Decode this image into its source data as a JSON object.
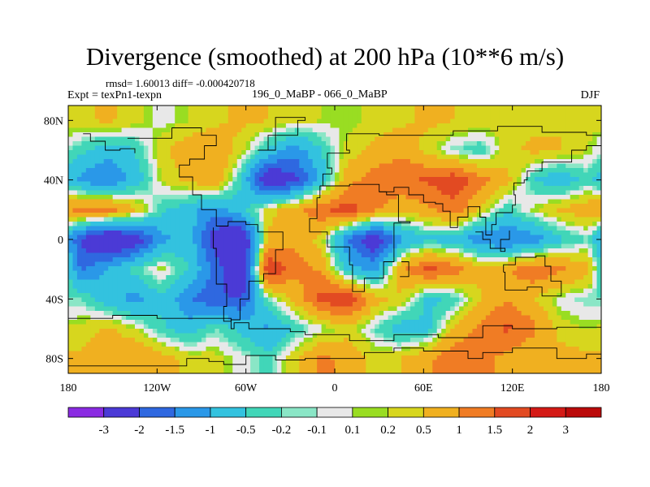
{
  "header": {
    "title": "Divergence (smoothed) at 200 hPa (10**6 m/s)",
    "stats": "rmsd= 1.60013 diff= -0.000420718",
    "experiment": "Expt = texPn1-texpn",
    "cases": "196_0_MaBP - 066_0_MaBP",
    "season": "DJF"
  },
  "chart_data": {
    "type": "heatmap",
    "title": "Divergence (smoothed) at 200 hPa (10**6 m/s)",
    "xlabel": "",
    "ylabel": "",
    "xlim": [
      -180,
      180
    ],
    "ylim": [
      -90,
      90
    ],
    "x_ticks": [
      {
        "value": -180,
        "label": "180"
      },
      {
        "value": -120,
        "label": "120W"
      },
      {
        "value": -60,
        "label": "60W"
      },
      {
        "value": 0,
        "label": "0"
      },
      {
        "value": 60,
        "label": "60E"
      },
      {
        "value": 120,
        "label": "120E"
      },
      {
        "value": 180,
        "label": "180"
      }
    ],
    "y_ticks": [
      {
        "value": 80,
        "label": "80N"
      },
      {
        "value": 40,
        "label": "40N"
      },
      {
        "value": 0,
        "label": "0"
      },
      {
        "value": -40,
        "label": "40S"
      },
      {
        "value": -80,
        "label": "80S"
      }
    ],
    "colorbar": {
      "boundaries": [
        "-3",
        "-2",
        "-1.5",
        "-1",
        "-0.5",
        "-0.2",
        "-0.1",
        "0.1",
        "0.2",
        "0.5",
        "1",
        "1.5",
        "2",
        "3"
      ],
      "colors": [
        "#8a2be2",
        "#4b3ad6",
        "#2f68e0",
        "#2a98e8",
        "#33c2df",
        "#41d6b8",
        "#8ae6c6",
        "#e8e8e8",
        "#99dd22",
        "#d7d61e",
        "#f0b020",
        "#f07c24",
        "#e24a22",
        "#d41a16",
        "#bb0a0a"
      ]
    },
    "bands": [
      {
        "lat": 80,
        "values": [
          0.4,
          0.6,
          0.3,
          0.0,
          0.2,
          0.4,
          0.6,
          0.5,
          0.3,
          0.2,
          0.1,
          0.3,
          0.4,
          0.6,
          0.5,
          0.4,
          0.3,
          0.4,
          0.5,
          0.3
        ]
      },
      {
        "lat": 60,
        "values": [
          -0.4,
          -0.8,
          -0.5,
          0.4,
          0.8,
          0.9,
          0.3,
          -0.6,
          -1.3,
          -0.5,
          0.3,
          0.6,
          0.9,
          0.3,
          -0.2,
          -0.4,
          0.4,
          0.6,
          0.5,
          0.2
        ]
      },
      {
        "lat": 40,
        "values": [
          -1.2,
          -1.5,
          -0.8,
          0.2,
          0.6,
          1.0,
          -0.5,
          -2.8,
          -2.2,
          -0.8,
          0.8,
          1.3,
          1.4,
          1.6,
          1.9,
          1.2,
          0.6,
          -0.5,
          -0.9,
          -0.3
        ]
      },
      {
        "lat": 20,
        "values": [
          1.2,
          1.3,
          0.6,
          -0.4,
          -0.8,
          -1.3,
          -0.7,
          0.3,
          0.8,
          1.4,
          1.8,
          1.1,
          0.6,
          0.9,
          1.3,
          0.4,
          -0.4,
          0.2,
          0.6,
          0.8
        ]
      },
      {
        "lat": 0,
        "values": [
          -2.1,
          -3.2,
          -2.5,
          -1.2,
          -0.6,
          -2.4,
          -3.0,
          0.6,
          0.9,
          0.3,
          -1.5,
          -2.6,
          -1.1,
          -0.6,
          -0.8,
          -1.4,
          -1.6,
          -1.3,
          -0.6,
          -0.2
        ]
      },
      {
        "lat": -20,
        "values": [
          -1.6,
          -0.9,
          -0.3,
          0.2,
          -0.5,
          -1.6,
          -3.1,
          2.1,
          1.2,
          0.9,
          -0.8,
          -1.2,
          0.9,
          1.7,
          1.3,
          0.6,
          0.9,
          1.4,
          1.1,
          0.7
        ]
      },
      {
        "lat": -40,
        "values": [
          -0.2,
          -0.8,
          -1.2,
          -0.6,
          -1.4,
          -1.9,
          -2.0,
          -0.2,
          0.6,
          1.7,
          2.0,
          0.7,
          0.4,
          -0.6,
          -0.4,
          0.5,
          1.0,
          0.5,
          0.0,
          -0.2
        ]
      },
      {
        "lat": -60,
        "values": [
          0.3,
          0.6,
          0.2,
          -0.4,
          -0.8,
          -0.2,
          -0.6,
          -1.1,
          -0.4,
          0.0,
          0.3,
          -0.2,
          -0.8,
          -0.6,
          0.6,
          1.2,
          1.6,
          1.1,
          0.3,
          0.2
        ]
      },
      {
        "lat": -80,
        "values": [
          0.6,
          0.8,
          1.0,
          0.7,
          0.4,
          0.3,
          0.0,
          -0.3,
          0.4,
          1.1,
          0.9,
          0.3,
          0.5,
          0.9,
          1.4,
          1.2,
          0.8,
          0.5,
          0.7,
          0.6
        ]
      }
    ],
    "contours": [
      [
        [
          -180,
          -53
        ],
        [
          -150,
          -53
        ],
        [
          -150,
          -51
        ],
        [
          -120,
          -51
        ],
        [
          -120,
          -53
        ],
        [
          -90,
          -53
        ],
        [
          -70,
          -60
        ],
        [
          -68,
          -56
        ],
        [
          -58,
          -60
        ],
        [
          -30,
          -60
        ],
        [
          -30,
          -62
        ],
        [
          -20,
          -64
        ],
        [
          10,
          -68
        ],
        [
          40,
          -64
        ],
        [
          70,
          -66
        ],
        [
          100,
          -58
        ],
        [
          120,
          -60
        ],
        [
          150,
          -59
        ],
        [
          180,
          -53
        ]
      ],
      [
        [
          -180,
          -85
        ],
        [
          -120,
          -85
        ],
        [
          -100,
          -80
        ],
        [
          -85,
          -82
        ],
        [
          -75,
          -84
        ],
        [
          -60,
          -78
        ],
        [
          -40,
          -81
        ],
        [
          -20,
          -80
        ],
        [
          0,
          -80
        ],
        [
          20,
          -76
        ],
        [
          40,
          -73
        ],
        [
          60,
          -75
        ],
        [
          90,
          -80
        ],
        [
          100,
          -76
        ],
        [
          120,
          -73
        ],
        [
          150,
          -80
        ],
        [
          170,
          -77
        ],
        [
          180,
          -78
        ]
      ],
      [
        [
          -140,
          68
        ],
        [
          -110,
          75
        ],
        [
          -90,
          70
        ],
        [
          -80,
          63
        ],
        [
          -88,
          54
        ],
        [
          -98,
          50
        ],
        [
          -105,
          42
        ],
        [
          -96,
          30
        ],
        [
          -90,
          20
        ],
        [
          -80,
          9
        ],
        [
          -72,
          12
        ],
        [
          -60,
          10
        ],
        [
          -52,
          5
        ],
        [
          -35,
          -7
        ],
        [
          -40,
          -23
        ],
        [
          -48,
          -28
        ],
        [
          -58,
          -40
        ],
        [
          -64,
          -54
        ],
        [
          -70,
          -55
        ],
        [
          -75,
          -45
        ],
        [
          -73,
          -30
        ],
        [
          -80,
          -6
        ],
        [
          -82,
          8
        ]
      ],
      [
        [
          -170,
          71
        ],
        [
          -165,
          66
        ],
        [
          -155,
          60
        ],
        [
          -145,
          61
        ],
        [
          -135,
          58
        ]
      ],
      [
        [
          -52,
          60
        ],
        [
          -40,
          82
        ],
        [
          -20,
          80
        ],
        [
          -25,
          70
        ],
        [
          -45,
          60
        ]
      ],
      [
        [
          -10,
          36
        ],
        [
          10,
          37
        ],
        [
          30,
          32
        ],
        [
          35,
          30
        ],
        [
          43,
          12
        ],
        [
          51,
          11
        ],
        [
          40,
          -15
        ],
        [
          33,
          -26
        ],
        [
          20,
          -35
        ],
        [
          12,
          -17
        ],
        [
          10,
          -5
        ],
        [
          -5,
          5
        ],
        [
          -17,
          14
        ],
        [
          -12,
          28
        ],
        [
          -10,
          36
        ]
      ],
      [
        [
          -10,
          36
        ],
        [
          -8,
          44
        ],
        [
          -2,
          48
        ],
        [
          -5,
          58
        ],
        [
          10,
          60
        ],
        [
          8,
          71
        ],
        [
          30,
          70
        ],
        [
          60,
          70
        ],
        [
          80,
          73
        ],
        [
          110,
          76
        ],
        [
          140,
          72
        ],
        [
          170,
          70
        ],
        [
          180,
          66
        ]
      ],
      [
        [
          30,
          32
        ],
        [
          40,
          35
        ],
        [
          50,
          30
        ],
        [
          60,
          25
        ],
        [
          68,
          24
        ],
        [
          73,
          19
        ],
        [
          78,
          8
        ],
        [
          83,
          15
        ],
        [
          90,
          22
        ],
        [
          98,
          15
        ],
        [
          102,
          3
        ],
        [
          106,
          10
        ],
        [
          109,
          18
        ],
        [
          120,
          23
        ],
        [
          122,
          30
        ],
        [
          121,
          38
        ],
        [
          128,
          40
        ],
        [
          130,
          46
        ],
        [
          140,
          52
        ],
        [
          160,
          60
        ],
        [
          170,
          63
        ],
        [
          180,
          66
        ]
      ],
      [
        [
          45,
          -15
        ],
        [
          50,
          -15
        ],
        [
          50,
          -25
        ],
        [
          44,
          -25
        ]
      ],
      [
        [
          114,
          -22
        ],
        [
          115,
          -34
        ],
        [
          130,
          -32
        ],
        [
          140,
          -38
        ],
        [
          150,
          -38
        ],
        [
          153,
          -28
        ],
        [
          146,
          -18
        ],
        [
          142,
          -11
        ],
        [
          136,
          -12
        ],
        [
          130,
          -12
        ],
        [
          122,
          -17
        ],
        [
          114,
          -22
        ]
      ],
      [
        [
          95,
          5
        ],
        [
          100,
          0
        ],
        [
          105,
          -6
        ],
        [
          115,
          -8
        ],
        [
          112,
          0
        ],
        [
          118,
          6
        ]
      ]
    ]
  }
}
